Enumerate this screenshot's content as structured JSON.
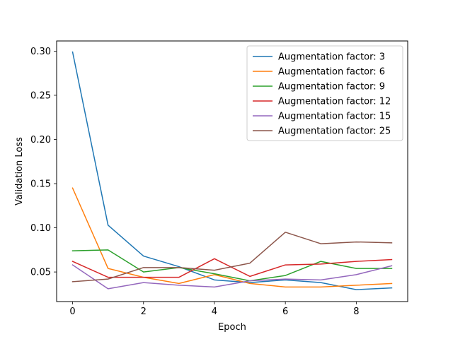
{
  "chart_data": {
    "type": "line",
    "title": "",
    "xlabel": "Epoch",
    "ylabel": "Validation Loss",
    "xlim": [
      -0.45,
      9.45
    ],
    "ylim": [
      0.0165,
      0.3115
    ],
    "xticks": [
      0,
      2,
      4,
      6,
      8
    ],
    "yticks": [
      0.05,
      0.1,
      0.15,
      0.2,
      0.25,
      0.3
    ],
    "xtick_labels": [
      "0",
      "2",
      "4",
      "6",
      "8"
    ],
    "ytick_labels": [
      "0.05",
      "0.10",
      "0.15",
      "0.20",
      "0.25",
      "0.30"
    ],
    "grid": false,
    "legend_position": "top-right",
    "x": [
      0,
      1,
      2,
      3,
      4,
      5,
      6,
      7,
      8,
      9
    ],
    "series": [
      {
        "name": "Augmentation factor: 3",
        "color": "#1f77b4",
        "values": [
          0.299,
          0.103,
          0.068,
          0.056,
          0.041,
          0.038,
          0.041,
          0.038,
          0.03,
          0.032
        ]
      },
      {
        "name": "Augmentation factor: 6",
        "color": "#ff7f0e",
        "values": [
          0.145,
          0.054,
          0.044,
          0.037,
          0.047,
          0.037,
          0.033,
          0.033,
          0.035,
          0.037
        ]
      },
      {
        "name": "Augmentation factor: 9",
        "color": "#2ca02c",
        "values": [
          0.074,
          0.075,
          0.05,
          0.055,
          0.048,
          0.04,
          0.046,
          0.062,
          0.054,
          0.054
        ]
      },
      {
        "name": "Augmentation factor: 12",
        "color": "#d62728",
        "values": [
          0.062,
          0.044,
          0.044,
          0.044,
          0.065,
          0.045,
          0.058,
          0.059,
          0.062,
          0.064
        ]
      },
      {
        "name": "Augmentation factor: 15",
        "color": "#9467bd",
        "values": [
          0.058,
          0.031,
          0.038,
          0.035,
          0.033,
          0.04,
          0.042,
          0.041,
          0.047,
          0.057
        ]
      },
      {
        "name": "Augmentation factor: 25",
        "color": "#8c564b",
        "values": [
          0.039,
          0.042,
          0.055,
          0.055,
          0.052,
          0.06,
          0.095,
          0.082,
          0.084,
          0.083
        ]
      }
    ]
  }
}
